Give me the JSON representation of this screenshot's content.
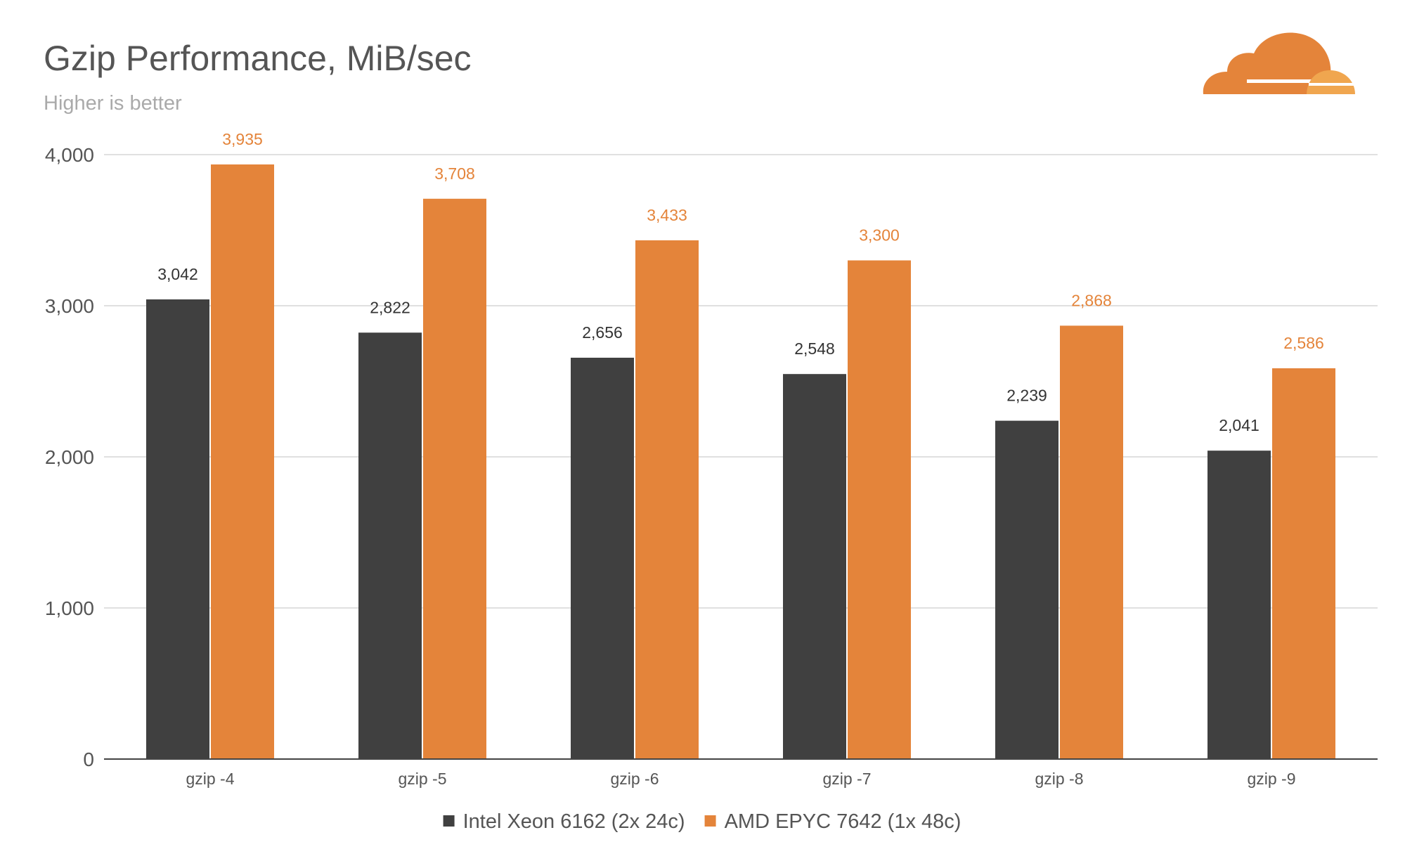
{
  "chart_data": {
    "type": "bar",
    "title": "Gzip Performance, MiB/sec",
    "subtitle": "Higher is better",
    "xlabel": "",
    "ylabel": "",
    "categories": [
      "gzip -4",
      "gzip -5",
      "gzip -6",
      "gzip -7",
      "gzip -8",
      "gzip -9"
    ],
    "series": [
      {
        "name": "Intel Xeon 6162 (2x 24c)",
        "color": "#404040",
        "label_color": "#333333",
        "values": [
          3042,
          2822,
          2656,
          2548,
          2239,
          2041
        ],
        "labels": [
          "3,042",
          "2,822",
          "2,656",
          "2,548",
          "2,239",
          "2,041"
        ]
      },
      {
        "name": "AMD EPYC 7642 (1x 48c)",
        "color": "#E4843A",
        "label_color": "#E4843A",
        "values": [
          3935,
          3708,
          3433,
          3300,
          2868,
          2586
        ],
        "labels": [
          "3,935",
          "3,708",
          "3,433",
          "3,300",
          "2,868",
          "2,586"
        ]
      }
    ],
    "yticks": [
      0,
      1000,
      2000,
      3000,
      4000
    ],
    "ytick_labels": [
      "0",
      "1,000",
      "2,000",
      "3,000",
      "4,000"
    ],
    "ylim": [
      0,
      4000
    ],
    "grid": true,
    "legend_position": "bottom-center"
  },
  "logo": {
    "icon": "cloudflare-cloud-icon",
    "colors": [
      "#E4843A",
      "#F0A64F"
    ]
  }
}
